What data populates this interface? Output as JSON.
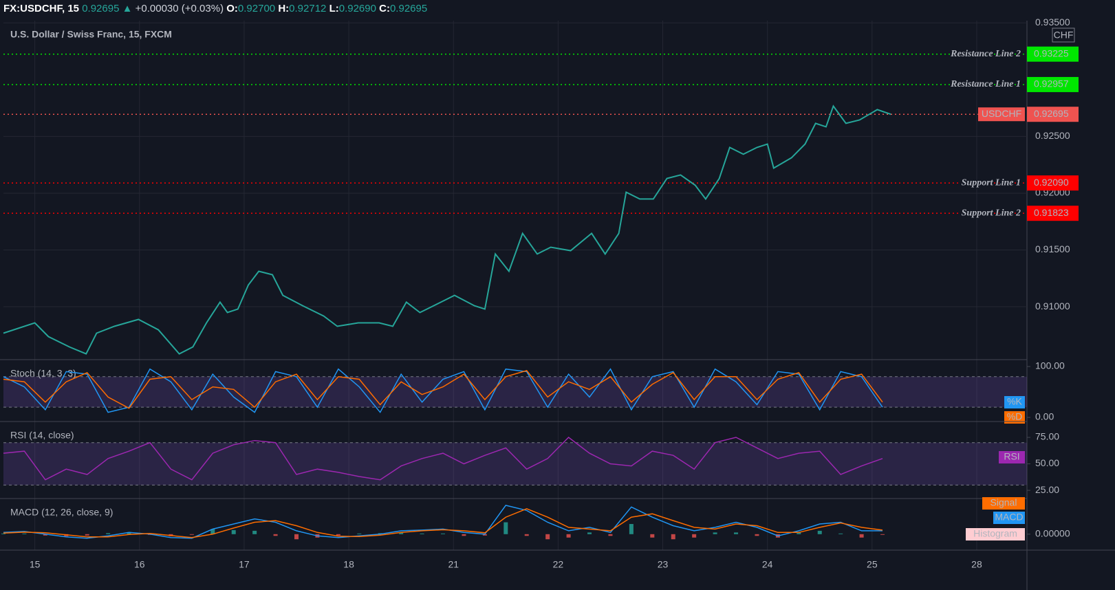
{
  "header": {
    "symbol": "FX:USDCHF, 15",
    "last": "0.92695",
    "arrow": "▲",
    "change": "+0.00030 (+0.03%)",
    "ohlc": [
      {
        "label": "O:",
        "value": "0.92700"
      },
      {
        "label": "H:",
        "value": "0.92712"
      },
      {
        "label": "L:",
        "value": "0.92690"
      },
      {
        "label": "C:",
        "value": "0.92695"
      }
    ]
  },
  "chart_data": [
    {
      "type": "line",
      "title": "U.S. Dollar / Swiss Franc, 15, FXCM",
      "currency": "CHF",
      "grid": true,
      "x": [
        -0.3,
        0.0,
        0.13,
        0.33,
        0.49,
        0.59,
        0.76,
        0.99,
        1.18,
        1.38,
        1.51,
        1.64,
        1.77,
        1.84,
        1.94,
        2.04,
        2.14,
        2.27,
        2.37,
        2.56,
        2.76,
        2.89,
        3.09,
        3.29,
        3.42,
        3.55,
        3.68,
        3.88,
        4.01,
        4.2,
        4.3,
        4.4,
        4.53,
        4.66,
        4.8,
        4.93,
        5.12,
        5.32,
        5.45,
        5.58,
        5.65,
        5.78,
        5.91,
        6.04,
        6.17,
        6.31,
        6.41,
        6.54,
        6.64,
        6.77,
        6.9,
        7.0,
        7.06,
        7.23,
        7.36,
        7.46,
        7.56,
        7.63,
        7.75,
        7.88,
        8.05,
        8.18
      ],
      "series": [
        {
          "color": "#26a69a",
          "values": [
            0.90767,
            0.90858,
            0.90737,
            0.90646,
            0.90585,
            0.90767,
            0.90828,
            0.90888,
            0.90797,
            0.90585,
            0.90646,
            0.90858,
            0.9104,
            0.90949,
            0.90979,
            0.91191,
            0.91312,
            0.91282,
            0.911,
            0.91009,
            0.90918,
            0.90828,
            0.90858,
            0.90858,
            0.90828,
            0.9104,
            0.90949,
            0.9104,
            0.911,
            0.91009,
            0.90979,
            0.91464,
            0.91312,
            0.91646,
            0.91464,
            0.91524,
            0.91494,
            0.91646,
            0.91464,
            0.91646,
            0.92009,
            0.91949,
            0.91949,
            0.9213,
            0.92161,
            0.9207,
            0.91949,
            0.9213,
            0.92403,
            0.92343,
            0.92403,
            0.92433,
            0.92221,
            0.92312,
            0.92433,
            0.92615,
            0.92585,
            0.92767,
            0.92615,
            0.92645,
            0.92736,
            0.92695
          ]
        }
      ],
      "xlim": [
        -0.3,
        9.48
      ],
      "xticks": [
        {
          "value": 0,
          "label": "15"
        },
        {
          "value": 1,
          "label": "16"
        },
        {
          "value": 2,
          "label": "17"
        },
        {
          "value": 3,
          "label": "18"
        },
        {
          "value": 4,
          "label": "21"
        },
        {
          "value": 5,
          "label": "22"
        },
        {
          "value": 6,
          "label": "23"
        },
        {
          "value": 7,
          "label": "24"
        },
        {
          "value": 8,
          "label": "25"
        },
        {
          "value": 9,
          "label": "28"
        }
      ],
      "ylim": [
        0.9054,
        0.9352
      ],
      "yticks": [
        {
          "value": 0.935,
          "label": "0.93500"
        },
        {
          "value": 0.925,
          "label": "0.92500"
        },
        {
          "value": 0.92,
          "label": "0.92000"
        },
        {
          "value": 0.915,
          "label": "0.91500"
        },
        {
          "value": 0.91,
          "label": "0.91000"
        }
      ],
      "hlines": [
        {
          "name": "Resistance Line 2",
          "value": 0.93225,
          "color": "#00e600"
        },
        {
          "name": "Resistance Line 1",
          "value": 0.92957,
          "color": "#00e600"
        },
        {
          "name": "USDCHF",
          "value": 0.92695,
          "color": "#ef5350",
          "name_box": true
        },
        {
          "name": "Support Line 1",
          "value": 0.9209,
          "label": "0.92090",
          "color": "#ff0000"
        },
        {
          "name": "Support Line 2",
          "value": 0.91823,
          "color": "#ff0000"
        }
      ]
    },
    {
      "type": "line",
      "title": "Stoch (14, 3, 3)",
      "x": [
        -0.3,
        -0.1,
        0.1,
        0.3,
        0.5,
        0.7,
        0.9,
        1.1,
        1.3,
        1.5,
        1.7,
        1.9,
        2.1,
        2.3,
        2.5,
        2.7,
        2.9,
        3.1,
        3.3,
        3.5,
        3.7,
        3.9,
        4.1,
        4.3,
        4.5,
        4.7,
        4.9,
        5.1,
        5.3,
        5.5,
        5.7,
        5.9,
        6.1,
        6.3,
        6.5,
        6.7,
        6.9,
        7.1,
        7.3,
        7.5,
        7.7,
        7.9,
        8.1
      ],
      "series": [
        {
          "name": "%K",
          "color": "#2196f3",
          "values": [
            80,
            60,
            15,
            90,
            85,
            10,
            20,
            95,
            70,
            15,
            85,
            40,
            10,
            90,
            80,
            20,
            95,
            60,
            10,
            85,
            30,
            75,
            90,
            15,
            95,
            90,
            20,
            85,
            40,
            95,
            15,
            80,
            90,
            20,
            95,
            70,
            25,
            90,
            85,
            15,
            90,
            80,
            20
          ]
        },
        {
          "name": "%D",
          "color": "#ff6d00",
          "values": [
            75,
            70,
            30,
            70,
            88,
            40,
            18,
            75,
            80,
            35,
            60,
            55,
            20,
            70,
            85,
            35,
            80,
            75,
            25,
            70,
            45,
            60,
            85,
            35,
            80,
            92,
            40,
            70,
            55,
            80,
            30,
            65,
            88,
            35,
            80,
            80,
            35,
            75,
            88,
            30,
            75,
            85,
            30
          ]
        }
      ],
      "xlim": [
        -0.3,
        9.48
      ],
      "ylim": [
        -6.8,
        112.2
      ],
      "yticks": [
        {
          "value": 100,
          "label": "100.00"
        },
        {
          "value": 0,
          "label": "0.00"
        }
      ],
      "bands": [
        20,
        80
      ]
    },
    {
      "type": "line",
      "title": "RSI (14, close)",
      "x": [
        -0.3,
        -0.1,
        0.1,
        0.3,
        0.5,
        0.7,
        0.9,
        1.1,
        1.3,
        1.5,
        1.7,
        1.9,
        2.1,
        2.3,
        2.5,
        2.7,
        2.9,
        3.1,
        3.3,
        3.5,
        3.7,
        3.9,
        4.1,
        4.3,
        4.5,
        4.7,
        4.9,
        5.1,
        5.3,
        5.5,
        5.7,
        5.9,
        6.1,
        6.3,
        6.5,
        6.7,
        6.9,
        7.1,
        7.3,
        7.5,
        7.7,
        7.9,
        8.1
      ],
      "series": [
        {
          "name": "RSI",
          "color": "#9c27b0",
          "values": [
            60,
            62,
            35,
            45,
            40,
            55,
            62,
            70,
            45,
            35,
            60,
            68,
            72,
            70,
            40,
            45,
            42,
            38,
            35,
            48,
            55,
            60,
            50,
            58,
            65,
            45,
            55,
            75,
            60,
            50,
            48,
            62,
            58,
            45,
            70,
            75,
            65,
            55,
            60,
            62,
            40,
            48,
            55
          ]
        }
      ],
      "xlim": [
        -0.3,
        9.48
      ],
      "ylim": [
        17.9,
        89.3
      ],
      "yticks": [
        {
          "value": 75,
          "label": "75.00"
        },
        {
          "value": 50,
          "label": "50.00"
        },
        {
          "value": 25,
          "label": "25.00"
        }
      ],
      "bands": [
        30,
        70
      ]
    },
    {
      "type": "line",
      "title": "MACD (12, 26, close, 9)",
      "x": [
        -0.3,
        -0.1,
        0.1,
        0.3,
        0.5,
        0.7,
        0.9,
        1.1,
        1.3,
        1.5,
        1.7,
        1.9,
        2.1,
        2.3,
        2.5,
        2.7,
        2.9,
        3.1,
        3.3,
        3.5,
        3.7,
        3.9,
        4.1,
        4.3,
        4.5,
        4.7,
        4.9,
        5.1,
        5.3,
        5.5,
        5.7,
        5.9,
        6.1,
        6.3,
        6.5,
        6.7,
        6.9,
        7.1,
        7.3,
        7.5,
        7.7,
        7.9,
        8.1
      ],
      "series": [
        {
          "name": "Histogram",
          "type": "bar",
          "color": "#26a69a",
          "negative_color": "#ef5350",
          "tag_color": "#ffcdd2",
          "values": [
            2e-05,
            2e-05,
            -4e-05,
            -6e-05,
            -4e-05,
            3e-05,
            6e-05,
            -2e-05,
            -6e-05,
            -2e-05,
            0.00015,
            0.00012,
            0.0001,
            -5e-05,
            -0.00015,
            -0.0001,
            -4e-05,
            2e-05,
            3e-05,
            5e-05,
            2e-05,
            2e-05,
            -5e-05,
            -4e-05,
            0.00035,
            -5e-05,
            -0.00015,
            -0.0001,
            5e-05,
            -5e-05,
            0.0003,
            -0.0001,
            -0.00015,
            -0.0001,
            5e-05,
            5e-05,
            -5e-05,
            -0.0001,
            5e-05,
            0.0001,
            2e-05,
            -0.0001,
            -2e-05
          ]
        },
        {
          "name": "MACD",
          "color": "#2196f3",
          "values": [
            5e-05,
            8e-05,
            0,
            -8e-05,
            -0.00012,
            -5e-05,
            5e-05,
            0,
            -0.0001,
            -0.00012,
            0.00015,
            0.0003,
            0.00045,
            0.00035,
            0.0001,
            -5e-05,
            -0.0001,
            -5e-05,
            0,
            0.0001,
            0.00012,
            0.00015,
            5e-05,
            0,
            0.00085,
            0.0007,
            0.00035,
            0.0001,
            0.0002,
            5e-05,
            0.0008,
            0.0005,
            0.00025,
            0.0001,
            0.0002,
            0.00035,
            0.0002,
            -5e-05,
            0.0001,
            0.0003,
            0.00035,
            0.0001,
            0.0001
          ]
        },
        {
          "name": "Signal",
          "color": "#ff6d00",
          "values": [
            3e-05,
            6e-05,
            4e-05,
            -2e-05,
            -8e-05,
            -8e-05,
            -1e-05,
            2e-05,
            -4e-05,
            -0.0001,
            0,
            0.00018,
            0.00035,
            0.0004,
            0.00025,
            5e-05,
            -6e-05,
            -7e-05,
            -3e-05,
            5e-05,
            0.0001,
            0.00013,
            0.0001,
            4e-05,
            0.0005,
            0.00075,
            0.0005,
            0.0002,
            0.00015,
            0.0001,
            0.0005,
            0.0006,
            0.0004,
            0.0002,
            0.00015,
            0.0003,
            0.00025,
            5e-05,
            5e-05,
            0.0002,
            0.00033,
            0.0002,
            0.00012
          ]
        }
      ],
      "xlim": [
        -0.3,
        9.48
      ],
      "ylim": [
        -0.00047,
        0.00103
      ],
      "yticks": [
        {
          "value": 0,
          "label": "0.00000"
        }
      ]
    }
  ]
}
